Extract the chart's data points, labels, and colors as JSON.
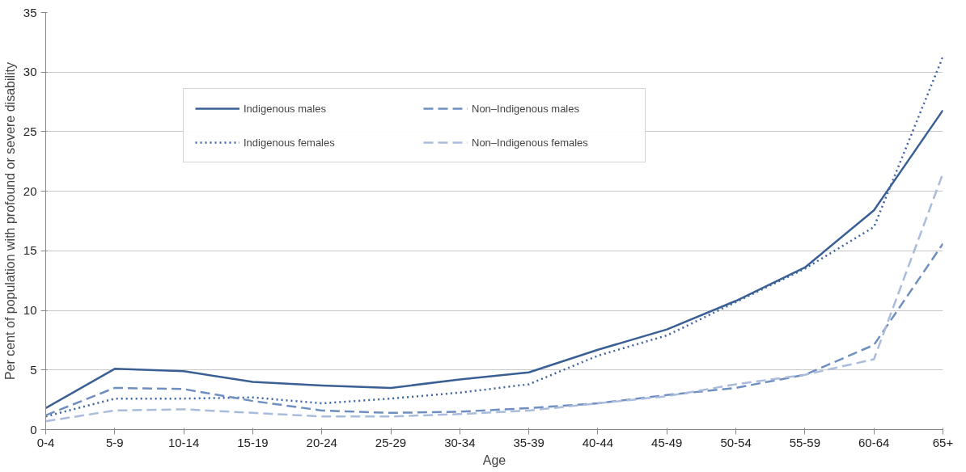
{
  "chart_data": {
    "type": "line",
    "xlabel": "Age",
    "ylabel": "Per cent of population with profound or severe disability",
    "categories": [
      "0-4",
      "5-9",
      "10-14",
      "15-19",
      "20-24",
      "25-29",
      "30-34",
      "35-39",
      "40-44",
      "45-49",
      "50-54",
      "55-59",
      "60-64",
      "65+"
    ],
    "series": [
      {
        "name": "Indigenous males",
        "color": "#3a5f94",
        "line_style": "solid",
        "values": [
          1.8,
          5.1,
          4.9,
          4.0,
          3.7,
          3.5,
          4.2,
          4.8,
          6.7,
          8.4,
          10.8,
          13.6,
          18.4,
          26.8
        ]
      },
      {
        "name": "Indigenous females",
        "color": "#3e64a0",
        "line_style": "dotted",
        "values": [
          1.1,
          2.6,
          2.6,
          2.7,
          2.2,
          2.6,
          3.1,
          3.8,
          6.2,
          7.9,
          10.7,
          13.5,
          17.0,
          31.3
        ]
      },
      {
        "name": "Non–Indigenous males",
        "color": "#6f8fc0",
        "line_style": "dashed",
        "values": [
          1.2,
          3.5,
          3.4,
          2.4,
          1.6,
          1.4,
          1.5,
          1.8,
          2.2,
          2.9,
          3.5,
          4.6,
          7.1,
          15.6
        ]
      },
      {
        "name": "Non–Indigenous females",
        "color": "#a9bcdc",
        "line_style": "dashed",
        "values": [
          0.7,
          1.6,
          1.7,
          1.4,
          1.1,
          1.1,
          1.3,
          1.6,
          2.2,
          2.8,
          3.8,
          4.6,
          5.9,
          21.5
        ]
      }
    ],
    "ylim": [
      0,
      35
    ],
    "yticks": [
      0,
      5,
      10,
      15,
      20,
      25,
      30,
      35
    ],
    "grid": "y",
    "legend": "top left",
    "marker": "none"
  }
}
